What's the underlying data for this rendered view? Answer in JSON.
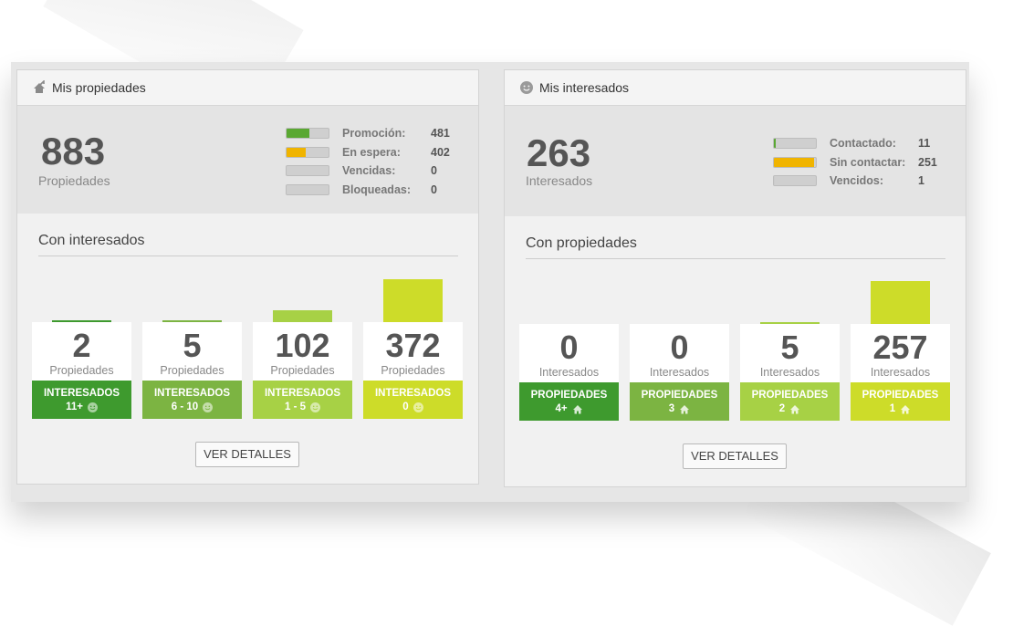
{
  "panels": {
    "properties": {
      "title": "Mis propiedades",
      "icon": "house-up-icon",
      "total": "883",
      "total_label": "Propiedades",
      "stats": [
        {
          "label": "Promoción:",
          "value": "481",
          "fill": 0.545,
          "color": "#5aa832"
        },
        {
          "label": "En espera:",
          "value": "402",
          "fill": 0.455,
          "color": "#f0b400"
        },
        {
          "label": "Vencidas:",
          "value": "0",
          "fill": 0,
          "color": "#cccccc"
        },
        {
          "label": "Bloqueadas:",
          "value": "0",
          "fill": 0,
          "color": "#cccccc"
        }
      ],
      "section_title": "Con interesados",
      "columns": [
        {
          "count": "2",
          "count_label": "Propiedades",
          "badge_line1": "INTERESADOS",
          "badge_line2": "11+",
          "bar_value": 2,
          "color": "#3e9a2e"
        },
        {
          "count": "5",
          "count_label": "Propiedades",
          "badge_line1": "INTERESADOS",
          "badge_line2": "6 - 10",
          "bar_value": 5,
          "color": "#7cb442"
        },
        {
          "count": "102",
          "count_label": "Propiedades",
          "badge_line1": "INTERESADOS",
          "badge_line2": "1 - 5",
          "bar_value": 102,
          "color": "#a7d145"
        },
        {
          "count": "372",
          "count_label": "Propiedades",
          "badge_line1": "INTERESADOS",
          "badge_line2": "0",
          "bar_value": 372,
          "color": "#cddc29"
        }
      ],
      "button_label": "VER DETALLES"
    },
    "interested": {
      "title": "Mis interesados",
      "icon": "smiley-icon",
      "total": "263",
      "total_label": "Interesados",
      "stats": [
        {
          "label": "Contactado:",
          "value": "11",
          "fill": 0.042,
          "color": "#5aa832"
        },
        {
          "label": "Sin contactar:",
          "value": "251",
          "fill": 0.954,
          "color": "#f0b400"
        },
        {
          "label": "Vencidos:",
          "value": "1",
          "fill": 0.004,
          "color": "#cccccc"
        }
      ],
      "section_title": "Con propiedades",
      "columns": [
        {
          "count": "0",
          "count_label": "Interesados",
          "badge_line1": "PROPIEDADES",
          "badge_line2": "4+",
          "bar_value": 0,
          "color": "#3e9a2e"
        },
        {
          "count": "0",
          "count_label": "Interesados",
          "badge_line1": "PROPIEDADES",
          "badge_line2": "3",
          "bar_value": 0,
          "color": "#7cb442"
        },
        {
          "count": "5",
          "count_label": "Interesados",
          "badge_line1": "PROPIEDADES",
          "badge_line2": "2",
          "bar_value": 5,
          "color": "#a7d145"
        },
        {
          "count": "257",
          "count_label": "Interesados",
          "badge_line1": "PROPIEDADES",
          "badge_line2": "1",
          "bar_value": 257,
          "color": "#cddc29"
        }
      ],
      "button_label": "VER DETALLES"
    }
  }
}
